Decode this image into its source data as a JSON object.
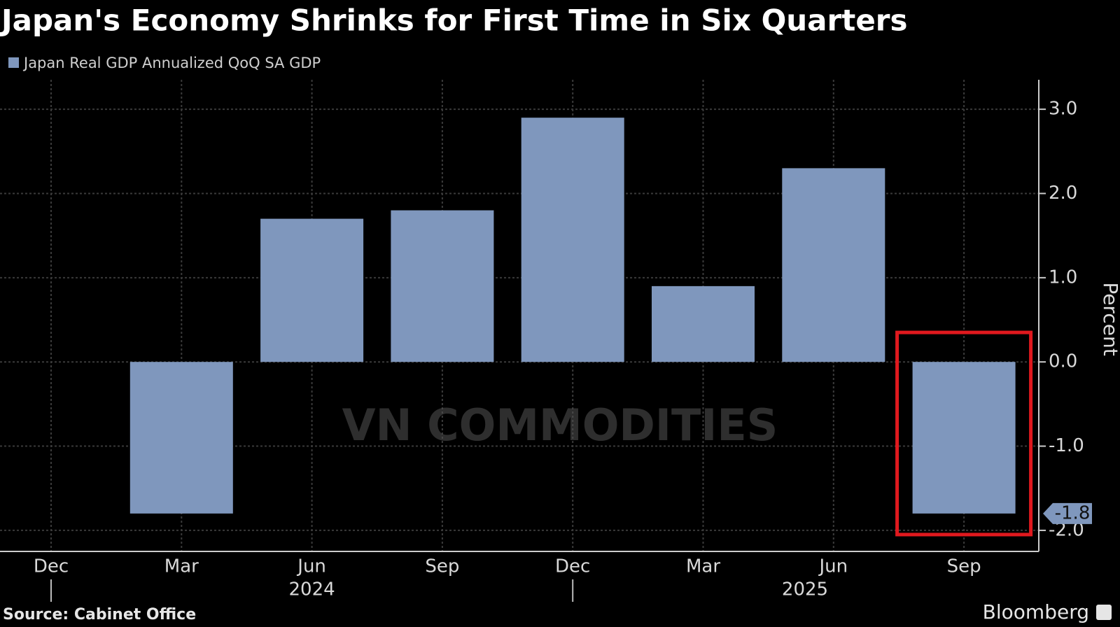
{
  "chart_data": {
    "type": "bar",
    "title": "Japan's Economy Shrinks for First Time in Six Quarters",
    "categories": [
      "Dec",
      "Mar",
      "Jun",
      "Sep",
      "Dec",
      "Mar",
      "Jun",
      "Sep"
    ],
    "year_labels": [
      "2024",
      "2025"
    ],
    "series": [
      {
        "name": "Japan Real GDP Annualized QoQ SA GDP",
        "color": "#7f97bd",
        "values": [
          null,
          -1.8,
          1.7,
          1.8,
          2.9,
          0.9,
          2.3,
          -1.8
        ],
        "value_labels": [
          null,
          null,
          null,
          null,
          null,
          null,
          null,
          "-1.8"
        ]
      }
    ],
    "y_axis_label": "Percent",
    "ylim": [
      -2.25,
      3.35
    ],
    "yticks": [
      {
        "value": -2,
        "label": "-2.0"
      },
      {
        "value": -1,
        "label": "-1.0"
      },
      {
        "value": 0,
        "label": "0.0"
      },
      {
        "value": 1,
        "label": "1.0"
      },
      {
        "value": 2,
        "label": "2.0"
      },
      {
        "value": 3,
        "label": "3.0"
      }
    ],
    "grid": true,
    "source": "Source: Cabinet Office",
    "brand": "Bloomberg",
    "watermark": "VN COMMODITIES"
  }
}
